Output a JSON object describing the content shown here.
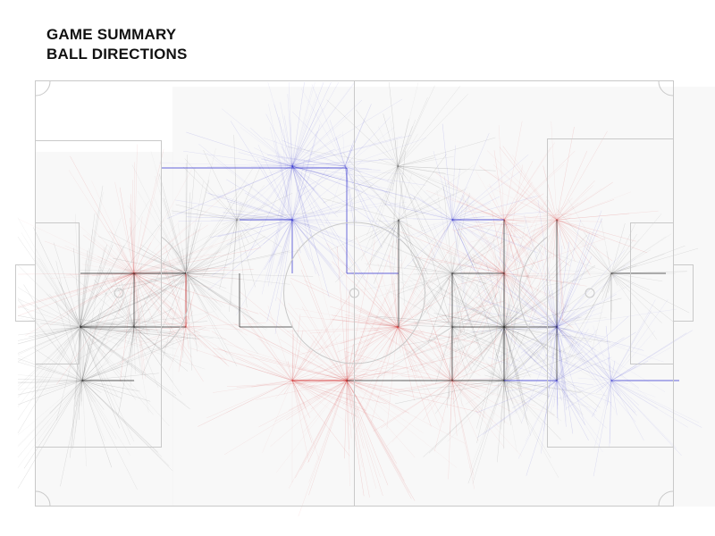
{
  "header": {
    "title_line1": "GAME SUMMARY",
    "title_line2": "BALL DIRECTIONS"
  },
  "colors": {
    "team_neutral": "#222222",
    "team_red": "#d01c1c",
    "team_blue": "#2222cc",
    "pitch_lines": "#c9c9c9"
  }
}
